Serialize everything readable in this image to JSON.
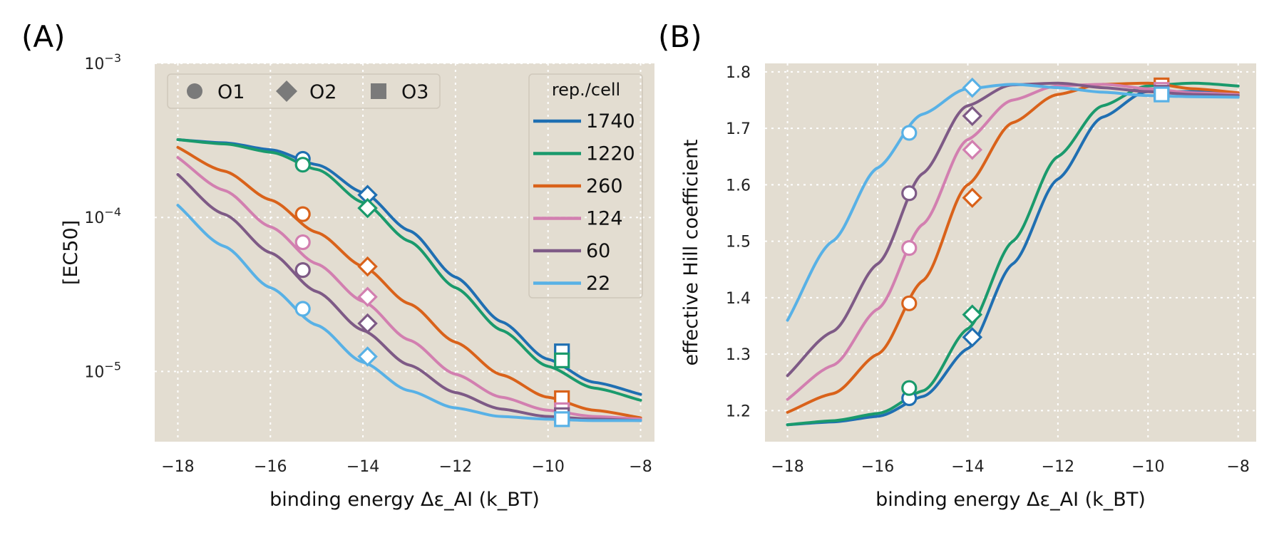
{
  "panels": {
    "A": {
      "label": "(A)"
    },
    "B": {
      "label": "(B)"
    }
  },
  "colors": {
    "background": "#e3ddd1",
    "1740": "#1f6fb2",
    "1220": "#1a9a6c",
    "260": "#d9621a",
    "124": "#d27fb0",
    "60": "#7e5a86",
    "22": "#58b1e6",
    "marker_legend": "#7a7a7a"
  },
  "chart_data": [
    {
      "type": "line",
      "panel": "A",
      "title": "",
      "xlabel": "binding energy Δε_AI (k_BT)",
      "ylabel": "[EC50]",
      "xlim": [
        -18.5,
        -7.7
      ],
      "ylim": [
        3.5e-06,
        0.001
      ],
      "yscale": "log",
      "grid": true,
      "x_ticks": [
        -18,
        -16,
        -14,
        -12,
        -10,
        -8
      ],
      "x_tick_labels": [
        "−18",
        "−16",
        "−14",
        "−12",
        "−10",
        "−8"
      ],
      "y_ticks": [
        1e-05,
        0.0001,
        0.001
      ],
      "y_tick_labels": [
        {
          "base": "10",
          "exp": "−5"
        },
        {
          "base": "10",
          "exp": "−4"
        },
        {
          "base": "10",
          "exp": "−3"
        }
      ],
      "operator_legend": {
        "placement": "top-left",
        "entries": [
          {
            "marker": "circle",
            "label": "O1"
          },
          {
            "marker": "diamond",
            "label": "O2"
          },
          {
            "marker": "square",
            "label": "O3"
          }
        ]
      },
      "legend": {
        "placement": "top-right",
        "title": "rep./cell",
        "entries": [
          "1740",
          "1220",
          "260",
          "124",
          "60",
          "22"
        ]
      },
      "operator_energies": {
        "O1": -15.3,
        "O2": -13.9,
        "O3": -9.7
      },
      "x": [
        -18,
        -17,
        -16,
        -15,
        -14,
        -13,
        -12,
        -11,
        -10,
        -9,
        -8
      ],
      "series": [
        {
          "name": "1740",
          "values": [
            0.00032,
            0.000305,
            0.000275,
            0.00022,
            0.000145,
            8.2e-05,
            4.1e-05,
            2.1e-05,
            1.2e-05,
            8.5e-06,
            7.1e-06
          ],
          "markers": [
            {
              "op": "O1",
              "value": 0.00024
            },
            {
              "op": "O2",
              "value": 0.00014
            },
            {
              "op": "O3",
              "value": 1.35e-05
            }
          ]
        },
        {
          "name": "1220",
          "values": [
            0.00032,
            0.0003,
            0.000265,
            0.000205,
            0.000125,
            7e-05,
            3.5e-05,
            1.85e-05,
            1.08e-05,
            7.8e-06,
            6.5e-06
          ],
          "markers": [
            {
              "op": "O1",
              "value": 0.00022
            },
            {
              "op": "O2",
              "value": 0.000115
            },
            {
              "op": "O3",
              "value": 1.18e-05
            }
          ]
        },
        {
          "name": "260",
          "values": [
            0.000285,
            0.0002,
            0.00013,
            8e-05,
            4.8e-05,
            2.75e-05,
            1.55e-05,
            9.5e-06,
            6.8e-06,
            5.6e-06,
            5e-06
          ],
          "markers": [
            {
              "op": "O1",
              "value": 0.000105
            },
            {
              "op": "O2",
              "value": 4.8e-05
            },
            {
              "op": "O3",
              "value": 6.7e-06
            }
          ]
        },
        {
          "name": "124",
          "values": [
            0.000245,
            0.00015,
            8.7e-05,
            5e-05,
            2.85e-05,
            1.6e-05,
            9.6e-06,
            6.8e-06,
            5.6e-06,
            5.1e-06,
            4.9e-06
          ],
          "markers": [
            {
              "op": "O1",
              "value": 6.9e-05
            },
            {
              "op": "O2",
              "value": 3.05e-05
            },
            {
              "op": "O3",
              "value": 5.6e-06
            }
          ]
        },
        {
          "name": "60",
          "values": [
            0.00019,
            0.000105,
            5.9e-05,
            3.3e-05,
            1.85e-05,
            1.1e-05,
            7.3e-06,
            5.7e-06,
            5.1e-06,
            4.9e-06,
            4.8e-06
          ],
          "markers": [
            {
              "op": "O1",
              "value": 4.55e-05
            },
            {
              "op": "O2",
              "value": 2.05e-05
            },
            {
              "op": "O3",
              "value": 5.2e-06
            }
          ]
        },
        {
          "name": "22",
          "values": [
            0.00012,
            6.5e-05,
            3.5e-05,
            2e-05,
            1.15e-05,
            7.5e-06,
            5.8e-06,
            5.1e-06,
            4.9e-06,
            4.8e-06,
            4.8e-06
          ],
          "markers": [
            {
              "op": "O1",
              "value": 2.55e-05
            },
            {
              "op": "O2",
              "value": 1.25e-05
            },
            {
              "op": "O3",
              "value": 4.9e-06
            }
          ]
        }
      ]
    },
    {
      "type": "line",
      "panel": "B",
      "title": "",
      "xlabel": "binding energy Δε_AI (k_BT)",
      "ylabel": "effective Hill coefficient",
      "xlim": [
        -18.5,
        -7.6
      ],
      "ylim": [
        1.145,
        1.815
      ],
      "grid": true,
      "x_ticks": [
        -18,
        -16,
        -14,
        -12,
        -10,
        -8
      ],
      "x_tick_labels": [
        "−18",
        "−16",
        "−14",
        "−12",
        "−10",
        "−8"
      ],
      "y_ticks": [
        1.2,
        1.3,
        1.4,
        1.5,
        1.6,
        1.7,
        1.8
      ],
      "y_tick_labels": [
        "1.2",
        "1.3",
        "1.4",
        "1.5",
        "1.6",
        "1.7",
        "1.8"
      ],
      "x": [
        -18,
        -17,
        -16,
        -15,
        -14,
        -13,
        -12,
        -11,
        -10,
        -9,
        -8
      ],
      "series": [
        {
          "name": "1740",
          "values": [
            1.175,
            1.18,
            1.19,
            1.225,
            1.31,
            1.46,
            1.61,
            1.72,
            1.765,
            1.765,
            1.76
          ],
          "markers": [
            {
              "op": "O1",
              "value": 1.222
            },
            {
              "op": "O2",
              "value": 1.33
            },
            {
              "op": "O3",
              "value": 1.767
            }
          ]
        },
        {
          "name": "1220",
          "values": [
            1.175,
            1.182,
            1.195,
            1.235,
            1.345,
            1.5,
            1.65,
            1.74,
            1.775,
            1.78,
            1.775
          ],
          "markers": [
            {
              "op": "O1",
              "value": 1.24
            },
            {
              "op": "O2",
              "value": 1.37
            },
            {
              "op": "O3",
              "value": 1.77
            }
          ]
        },
        {
          "name": "260",
          "values": [
            1.197,
            1.23,
            1.3,
            1.43,
            1.6,
            1.71,
            1.76,
            1.778,
            1.78,
            1.77,
            1.763
          ],
          "markers": [
            {
              "op": "O1",
              "value": 1.39
            },
            {
              "op": "O2",
              "value": 1.577
            },
            {
              "op": "O3",
              "value": 1.776
            }
          ]
        },
        {
          "name": "124",
          "values": [
            1.22,
            1.28,
            1.38,
            1.53,
            1.68,
            1.75,
            1.775,
            1.778,
            1.77,
            1.763,
            1.76
          ],
          "markers": [
            {
              "op": "O1",
              "value": 1.488
            },
            {
              "op": "O2",
              "value": 1.662
            },
            {
              "op": "O3",
              "value": 1.768
            }
          ]
        },
        {
          "name": "60",
          "values": [
            1.262,
            1.34,
            1.46,
            1.62,
            1.74,
            1.777,
            1.78,
            1.772,
            1.765,
            1.76,
            1.758
          ],
          "markers": [
            {
              "op": "O1",
              "value": 1.585
            },
            {
              "op": "O2",
              "value": 1.722
            },
            {
              "op": "O3",
              "value": 1.763
            }
          ]
        },
        {
          "name": "22",
          "values": [
            1.36,
            1.5,
            1.63,
            1.725,
            1.77,
            1.778,
            1.772,
            1.764,
            1.758,
            1.756,
            1.755
          ],
          "markers": [
            {
              "op": "O1",
              "value": 1.692
            },
            {
              "op": "O2",
              "value": 1.772
            },
            {
              "op": "O3",
              "value": 1.76
            }
          ]
        }
      ]
    }
  ]
}
